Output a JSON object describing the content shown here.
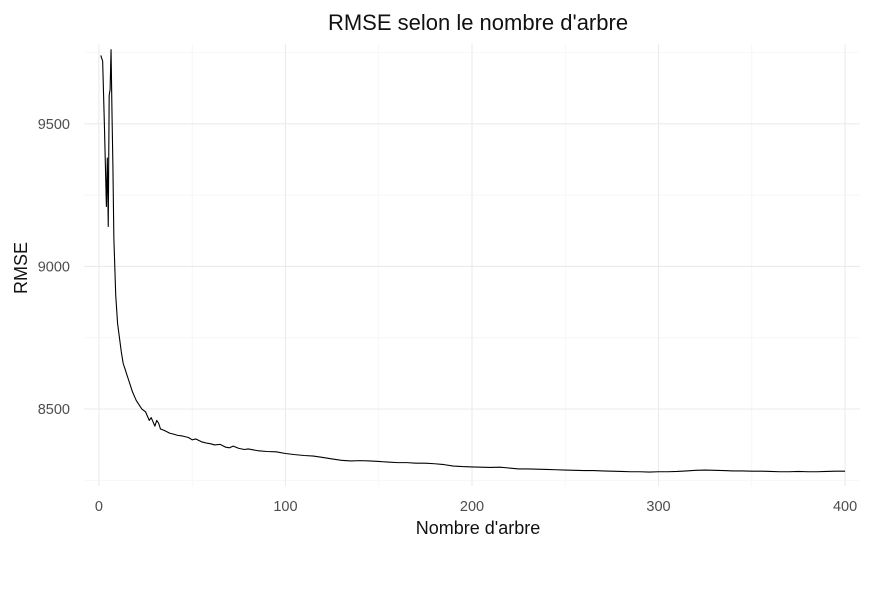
{
  "chart_data": {
    "type": "line",
    "title": "RMSE selon le nombre d'arbre",
    "xlabel": "Nombre d'arbre",
    "ylabel": "RMSE",
    "xlim": [
      -8,
      408
    ],
    "ylim": [
      8230,
      9780
    ],
    "x_ticks": [
      0,
      100,
      200,
      300,
      400
    ],
    "x_minor_ticks": [
      50,
      150,
      250,
      350
    ],
    "y_ticks": [
      8500,
      9000,
      9500
    ],
    "y_minor_ticks": [
      8250,
      8750,
      9250,
      9750
    ],
    "grid": true,
    "legend": "none",
    "series": [
      {
        "points": [
          [
            1,
            9740
          ],
          [
            2,
            9720
          ],
          [
            3,
            9480
          ],
          [
            4,
            9210
          ],
          [
            4.5,
            9380
          ],
          [
            5,
            9140
          ],
          [
            5.5,
            9600
          ],
          [
            6,
            9620
          ],
          [
            6.5,
            9760
          ],
          [
            7,
            9540
          ],
          [
            7.5,
            9350
          ],
          [
            8,
            9100
          ],
          [
            9,
            8900
          ],
          [
            10,
            8800
          ],
          [
            11,
            8750
          ],
          [
            12,
            8700
          ],
          [
            13,
            8660
          ],
          [
            14,
            8640
          ],
          [
            15,
            8620
          ],
          [
            16,
            8600
          ],
          [
            17,
            8580
          ],
          [
            18,
            8560
          ],
          [
            19,
            8545
          ],
          [
            20,
            8530
          ],
          [
            21,
            8520
          ],
          [
            22,
            8510
          ],
          [
            23,
            8500
          ],
          [
            24,
            8495
          ],
          [
            25,
            8490
          ],
          [
            26,
            8475
          ],
          [
            27,
            8460
          ],
          [
            28,
            8470
          ],
          [
            29,
            8455
          ],
          [
            30,
            8440
          ],
          [
            31,
            8460
          ],
          [
            32,
            8450
          ],
          [
            33,
            8430
          ],
          [
            35,
            8425
          ],
          [
            38,
            8415
          ],
          [
            40,
            8412
          ],
          [
            42,
            8408
          ],
          [
            45,
            8405
          ],
          [
            48,
            8400
          ],
          [
            50,
            8392
          ],
          [
            52,
            8395
          ],
          [
            55,
            8385
          ],
          [
            58,
            8380
          ],
          [
            60,
            8378
          ],
          [
            62,
            8374
          ],
          [
            65,
            8376
          ],
          [
            68,
            8366
          ],
          [
            70,
            8364
          ],
          [
            72,
            8370
          ],
          [
            75,
            8362
          ],
          [
            78,
            8358
          ],
          [
            80,
            8360
          ],
          [
            85,
            8354
          ],
          [
            90,
            8351
          ],
          [
            95,
            8350
          ],
          [
            100,
            8344
          ],
          [
            105,
            8340
          ],
          [
            110,
            8337
          ],
          [
            115,
            8335
          ],
          [
            120,
            8330
          ],
          [
            125,
            8325
          ],
          [
            130,
            8320
          ],
          [
            135,
            8318
          ],
          [
            140,
            8319
          ],
          [
            145,
            8318
          ],
          [
            150,
            8316
          ],
          [
            155,
            8314
          ],
          [
            160,
            8312
          ],
          [
            165,
            8312
          ],
          [
            170,
            8310
          ],
          [
            175,
            8310
          ],
          [
            180,
            8308
          ],
          [
            185,
            8305
          ],
          [
            190,
            8300
          ],
          [
            195,
            8298
          ],
          [
            200,
            8297
          ],
          [
            205,
            8296
          ],
          [
            210,
            8295
          ],
          [
            215,
            8296
          ],
          [
            220,
            8293
          ],
          [
            225,
            8290
          ],
          [
            230,
            8290
          ],
          [
            235,
            8289
          ],
          [
            240,
            8288
          ],
          [
            245,
            8287
          ],
          [
            250,
            8286
          ],
          [
            255,
            8285
          ],
          [
            260,
            8284
          ],
          [
            265,
            8284
          ],
          [
            270,
            8283
          ],
          [
            275,
            8282
          ],
          [
            280,
            8281
          ],
          [
            285,
            8280
          ],
          [
            290,
            8280
          ],
          [
            295,
            8279
          ],
          [
            300,
            8280
          ],
          [
            305,
            8280
          ],
          [
            310,
            8281
          ],
          [
            315,
            8283
          ],
          [
            320,
            8285
          ],
          [
            325,
            8286
          ],
          [
            330,
            8285
          ],
          [
            335,
            8284
          ],
          [
            340,
            8283
          ],
          [
            345,
            8283
          ],
          [
            350,
            8282
          ],
          [
            355,
            8282
          ],
          [
            360,
            8281
          ],
          [
            365,
            8280
          ],
          [
            370,
            8280
          ],
          [
            375,
            8281
          ],
          [
            380,
            8280
          ],
          [
            385,
            8280
          ],
          [
            390,
            8281
          ],
          [
            395,
            8282
          ],
          [
            400,
            8282
          ]
        ]
      }
    ]
  }
}
